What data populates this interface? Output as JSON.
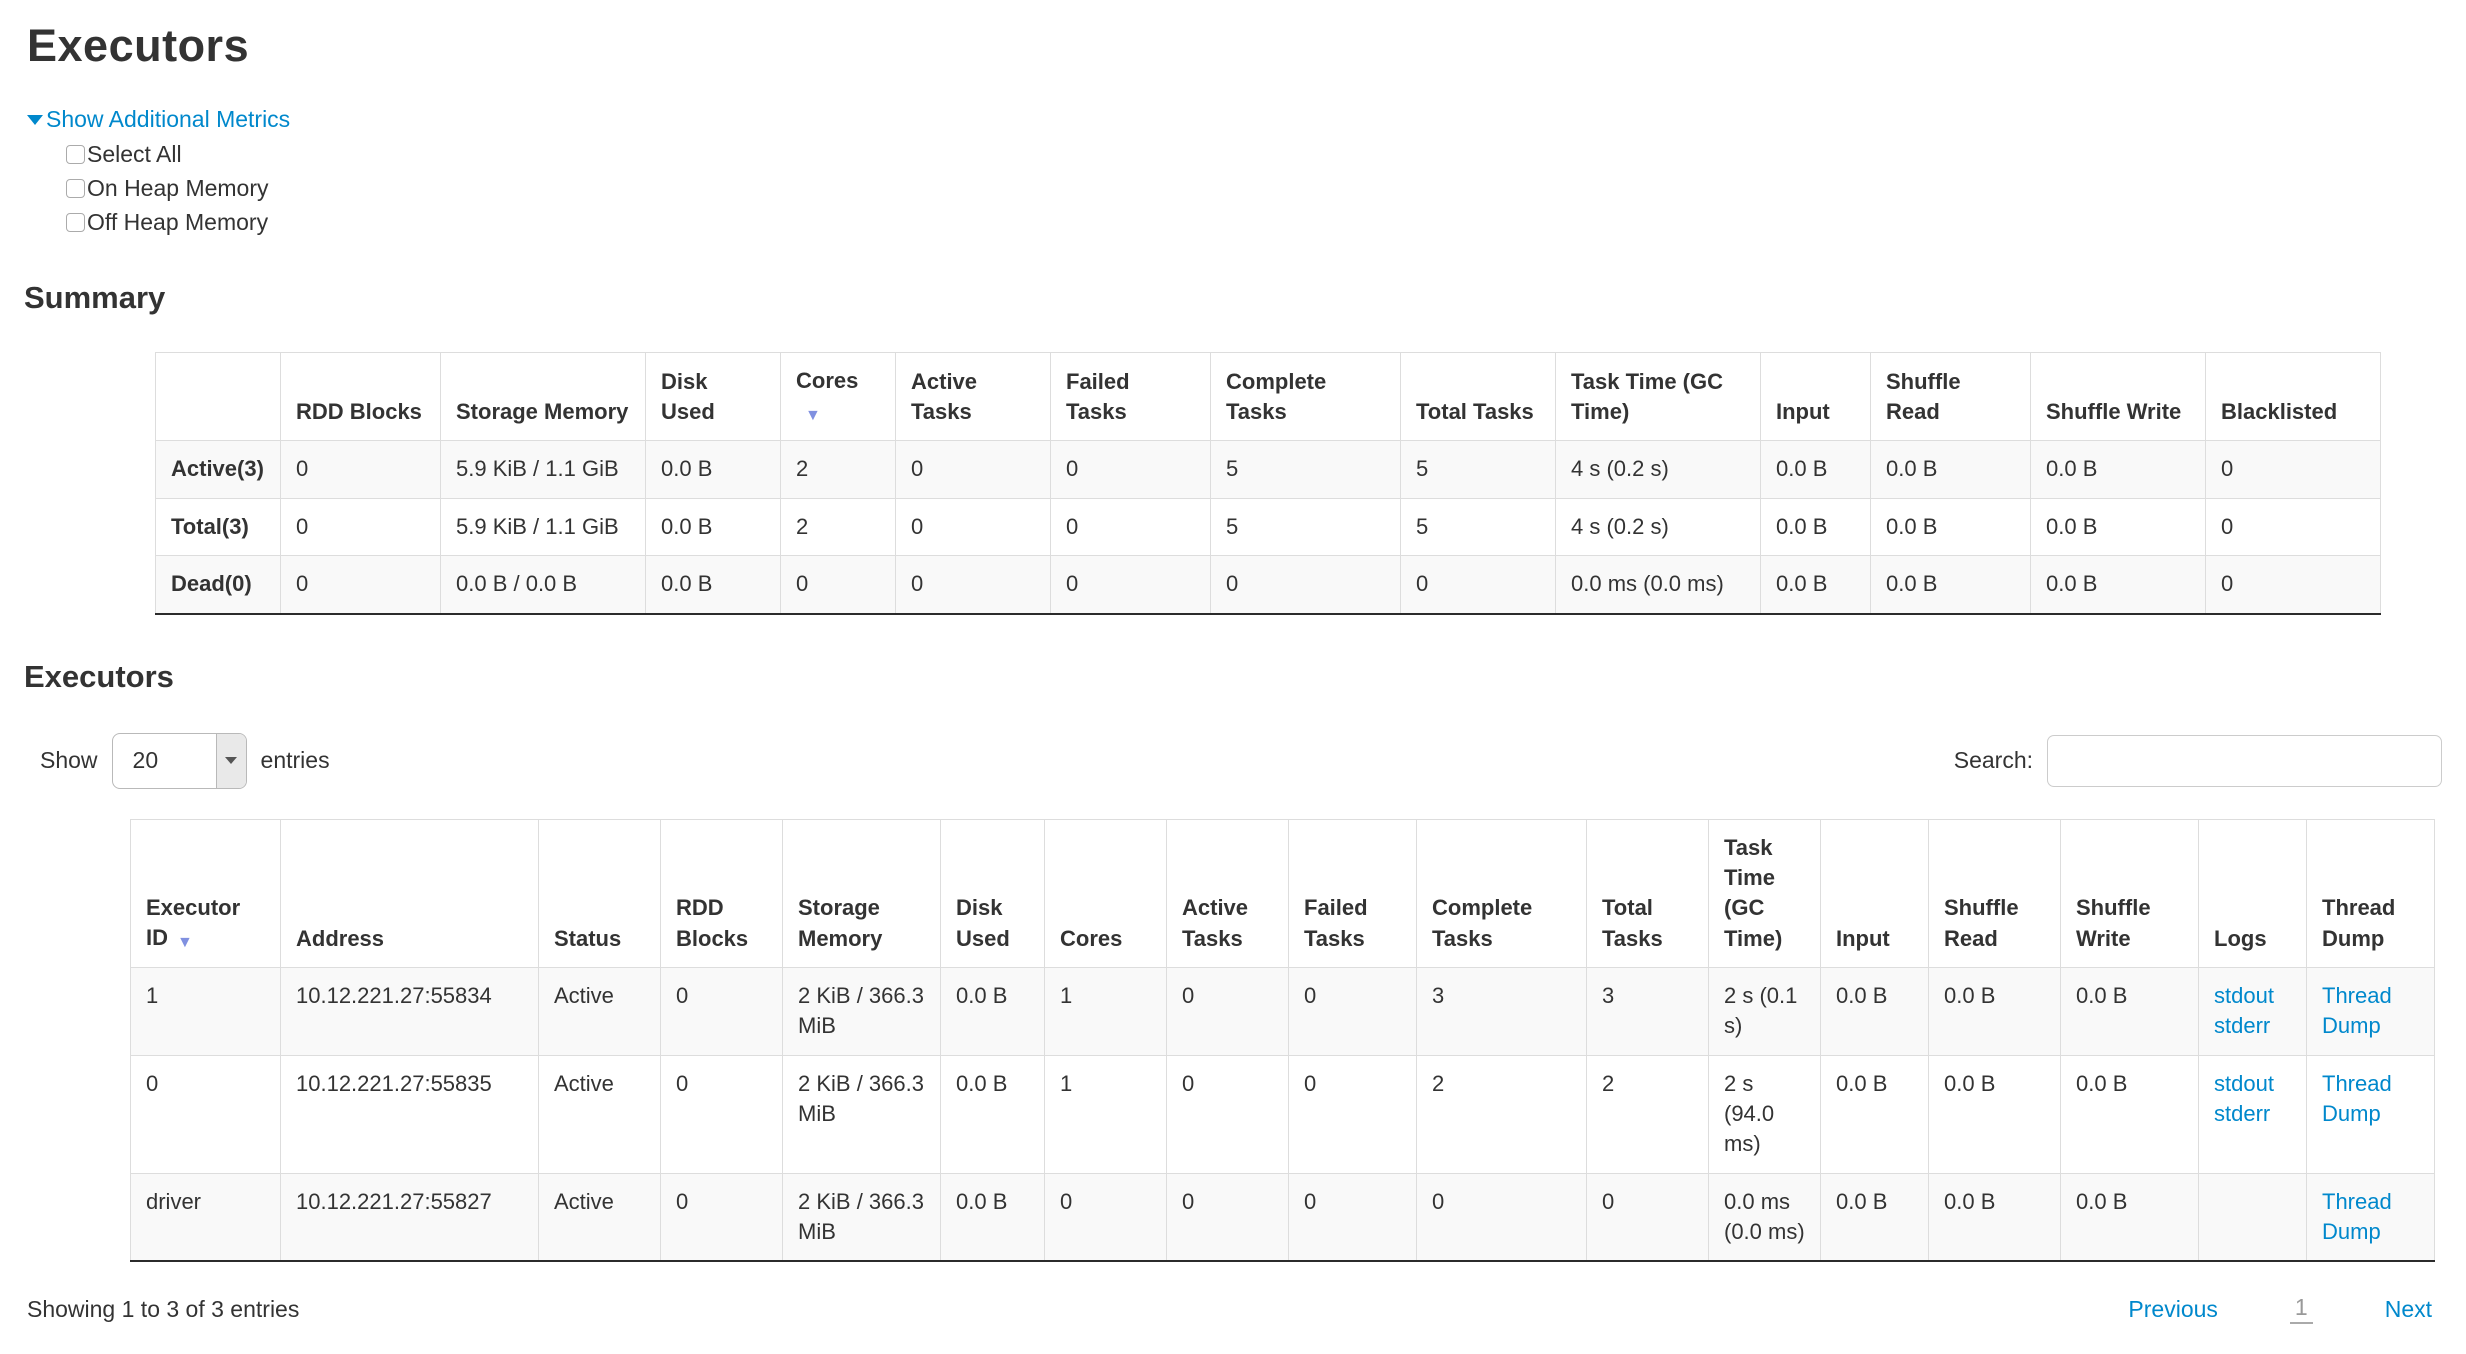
{
  "page": {
    "title": "Executors"
  },
  "colors": {
    "link_blue": "#0088cc",
    "sort_arrow": "#8090e0",
    "row_stripe": "#f9f9f9"
  },
  "additional_metrics": {
    "toggle_label": "Show Additional Metrics",
    "items": [
      "Select All",
      "On Heap Memory",
      "Off Heap Memory"
    ],
    "checked": [
      false,
      false,
      false
    ]
  },
  "summary": {
    "heading": "Summary",
    "columns": [
      "",
      "RDD Blocks",
      "Storage Memory",
      "Disk Used",
      "Cores",
      "Active Tasks",
      "Failed Tasks",
      "Complete Tasks",
      "Total Tasks",
      "Task Time (GC Time)",
      "Input",
      "Shuffle Read",
      "Shuffle Write",
      "Blacklisted"
    ],
    "sorted_column": "Cores",
    "rows": [
      {
        "label": "Active(3)",
        "values": [
          "0",
          "5.9 KiB / 1.1 GiB",
          "0.0 B",
          "2",
          "0",
          "0",
          "5",
          "5",
          "4 s (0.2 s)",
          "0.0 B",
          "0.0 B",
          "0.0 B",
          "0"
        ]
      },
      {
        "label": "Total(3)",
        "values": [
          "0",
          "5.9 KiB / 1.1 GiB",
          "0.0 B",
          "2",
          "0",
          "0",
          "5",
          "5",
          "4 s (0.2 s)",
          "0.0 B",
          "0.0 B",
          "0.0 B",
          "0"
        ]
      },
      {
        "label": "Dead(0)",
        "values": [
          "0",
          "0.0 B / 0.0 B",
          "0.0 B",
          "0",
          "0",
          "0",
          "0",
          "0",
          "0.0 ms (0.0 ms)",
          "0.0 B",
          "0.0 B",
          "0.0 B",
          "0"
        ]
      }
    ]
  },
  "executors": {
    "heading": "Executors",
    "length_menu": {
      "show": "Show",
      "value": "20",
      "entries": "entries"
    },
    "search": {
      "label": "Search:",
      "value": ""
    },
    "columns": [
      "Executor ID",
      "Address",
      "Status",
      "RDD Blocks",
      "Storage Memory",
      "Disk Used",
      "Cores",
      "Active Tasks",
      "Failed Tasks",
      "Complete Tasks",
      "Total Tasks",
      "Task Time (GC Time)",
      "Input",
      "Shuffle Read",
      "Shuffle Write",
      "Logs",
      "Thread Dump"
    ],
    "sorted_column": "Executor ID",
    "rows": [
      {
        "executor_id": "1",
        "address": "10.12.221.27:55834",
        "status": "Active",
        "rdd_blocks": "0",
        "storage_memory": "2 KiB / 366.3 MiB",
        "disk_used": "0.0 B",
        "cores": "1",
        "active_tasks": "0",
        "failed_tasks": "0",
        "complete_tasks": "3",
        "total_tasks": "3",
        "task_time": "2 s (0.1 s)",
        "input": "0.0 B",
        "shuffle_read": "0.0 B",
        "shuffle_write": "0.0 B",
        "logs": [
          "stdout",
          "stderr"
        ],
        "thread_dump": "Thread Dump"
      },
      {
        "executor_id": "0",
        "address": "10.12.221.27:55835",
        "status": "Active",
        "rdd_blocks": "0",
        "storage_memory": "2 KiB / 366.3 MiB",
        "disk_used": "0.0 B",
        "cores": "1",
        "active_tasks": "0",
        "failed_tasks": "0",
        "complete_tasks": "2",
        "total_tasks": "2",
        "task_time": "2 s (94.0 ms)",
        "input": "0.0 B",
        "shuffle_read": "0.0 B",
        "shuffle_write": "0.0 B",
        "logs": [
          "stdout",
          "stderr"
        ],
        "thread_dump": "Thread Dump"
      },
      {
        "executor_id": "driver",
        "address": "10.12.221.27:55827",
        "status": "Active",
        "rdd_blocks": "0",
        "storage_memory": "2 KiB / 366.3 MiB",
        "disk_used": "0.0 B",
        "cores": "0",
        "active_tasks": "0",
        "failed_tasks": "0",
        "complete_tasks": "0",
        "total_tasks": "0",
        "task_time": "0.0 ms (0.0 ms)",
        "input": "0.0 B",
        "shuffle_read": "0.0 B",
        "shuffle_write": "0.0 B",
        "logs": [],
        "thread_dump": "Thread Dump"
      }
    ],
    "info": "Showing 1 to 3 of 3 entries",
    "pagination": {
      "previous": "Previous",
      "current_page": "1",
      "next": "Next"
    }
  }
}
